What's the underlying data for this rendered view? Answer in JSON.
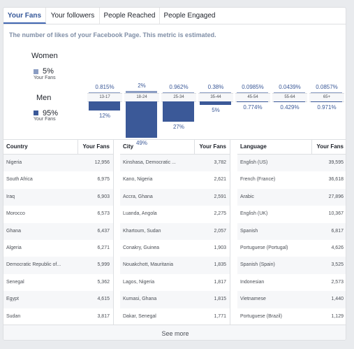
{
  "tabs": [
    {
      "label": "Your Fans",
      "active": true
    },
    {
      "label": "Your followers",
      "active": false
    },
    {
      "label": "People Reached",
      "active": false
    },
    {
      "label": "People Engaged",
      "active": false
    }
  ],
  "description": "The number of likes of your Facebook Page. This metric is estimated.",
  "gender": {
    "women": {
      "title": "Women",
      "pct": "5%",
      "sub": "Your Fans",
      "color": "#8b9dc3"
    },
    "men": {
      "title": "Men",
      "pct": "95%",
      "sub": "Your Fans",
      "color": "#3b5998"
    }
  },
  "chart_data": {
    "type": "bar",
    "categories": [
      "13-17",
      "18-24",
      "25-34",
      "35-44",
      "45-54",
      "55-64",
      "65+"
    ],
    "series": [
      {
        "name": "Women",
        "values": [
          0.815,
          2,
          0.962,
          0.38,
          0.0985,
          0.0439,
          0.0857
        ],
        "labels": [
          "0.815%",
          "2%",
          "0.962%",
          "0.38%",
          "0.0985%",
          "0.0439%",
          "0.0857%"
        ]
      },
      {
        "name": "Men",
        "values": [
          12,
          49,
          27,
          5,
          0.774,
          0.429,
          0.971
        ],
        "labels": [
          "12%",
          "49%",
          "27%",
          "5%",
          "0.774%",
          "0.429%",
          "0.971%"
        ]
      }
    ]
  },
  "tables": {
    "country": {
      "header": "Country",
      "value_header": "Your Fans",
      "rows": [
        {
          "name": "Nigeria",
          "value": "12,956"
        },
        {
          "name": "South Africa",
          "value": "6,975"
        },
        {
          "name": "Iraq",
          "value": "6,903"
        },
        {
          "name": "Morocco",
          "value": "6,573"
        },
        {
          "name": "Ghana",
          "value": "6,437"
        },
        {
          "name": "Algeria",
          "value": "6,271"
        },
        {
          "name": "Democratic Republic of...",
          "value": "5,999"
        },
        {
          "name": "Senegal",
          "value": "5,362"
        },
        {
          "name": "Egypt",
          "value": "4,615"
        },
        {
          "name": "Sudan",
          "value": "3,817"
        }
      ]
    },
    "city": {
      "header": "City",
      "value_header": "Your Fans",
      "rows": [
        {
          "name": "Kinshasa, Democratic ...",
          "value": "3,782"
        },
        {
          "name": "Kano, Nigeria",
          "value": "2,621"
        },
        {
          "name": "Accra, Ghana",
          "value": "2,591"
        },
        {
          "name": "Luanda, Angola",
          "value": "2,275"
        },
        {
          "name": "Khartoum, Sudan",
          "value": "2,057"
        },
        {
          "name": "Conakry, Guinea",
          "value": "1,903"
        },
        {
          "name": "Nouakchott, Mauritania",
          "value": "1,835"
        },
        {
          "name": "Lagos, Nigeria",
          "value": "1,817"
        },
        {
          "name": "Kumasi, Ghana",
          "value": "1,815"
        },
        {
          "name": "Dakar, Senegal",
          "value": "1,771"
        }
      ]
    },
    "language": {
      "header": "Language",
      "value_header": "Your Fans",
      "rows": [
        {
          "name": "English (US)",
          "value": "39,595"
        },
        {
          "name": "French (France)",
          "value": "36,618"
        },
        {
          "name": "Arabic",
          "value": "27,896"
        },
        {
          "name": "English (UK)",
          "value": "10,367"
        },
        {
          "name": "Spanish",
          "value": "6,817"
        },
        {
          "name": "Portuguese (Portugal)",
          "value": "4,626"
        },
        {
          "name": "Spanish (Spain)",
          "value": "3,525"
        },
        {
          "name": "Indonesian",
          "value": "2,573"
        },
        {
          "name": "Vietnamese",
          "value": "1,440"
        },
        {
          "name": "Portuguese (Brazil)",
          "value": "1,129"
        }
      ]
    }
  },
  "see_more": "See more"
}
